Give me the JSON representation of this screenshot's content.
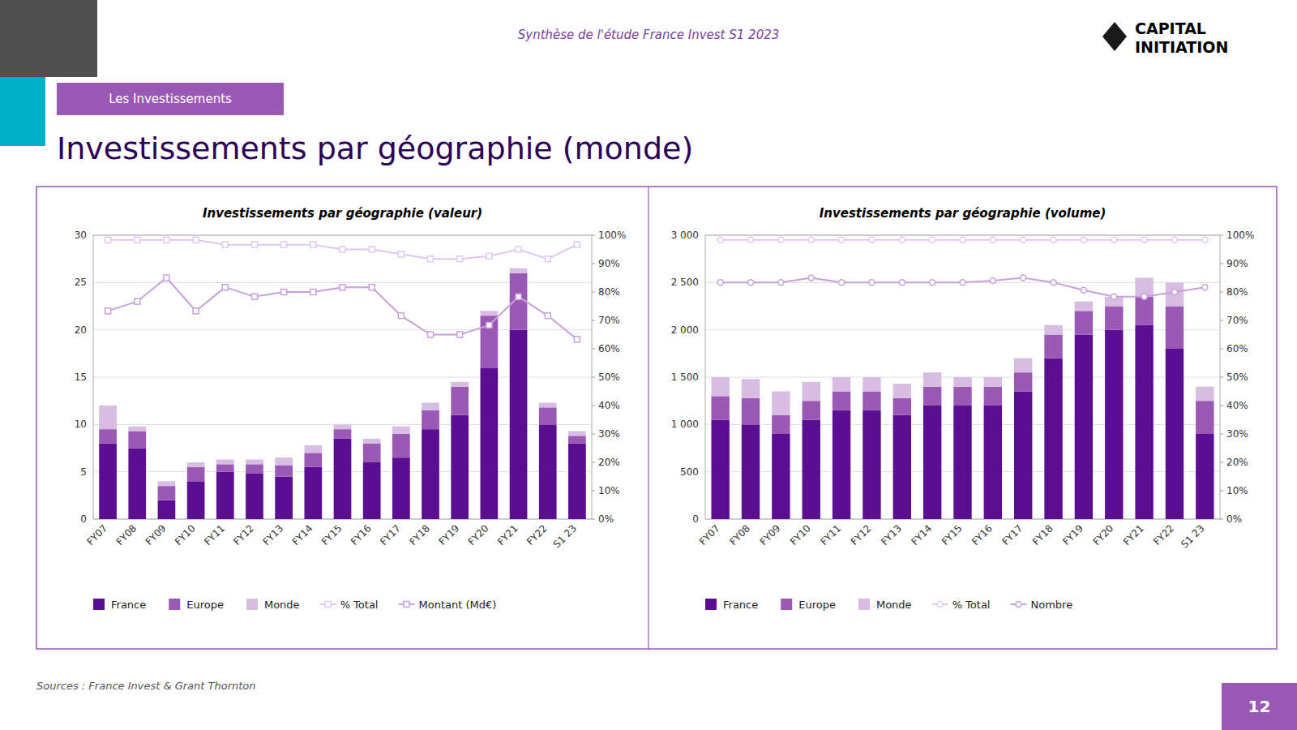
{
  "title": "Investissements par géographie (monde)",
  "subtitle": "Synthèse de l'étude France Invest S1 2023",
  "annotations": [
    "Les Investissements",
    "CAPITAL",
    "INITIATION",
    "Sources : France Invest & Grant Thornton",
    "12"
  ],
  "chart_data": [
    {
      "type": "bar",
      "title": "Investissements par géographie (valeur)",
      "stacked": true,
      "grid": true,
      "legend": "bottom",
      "categories": [
        "FY07",
        "FY08",
        "FY09",
        "FY10",
        "FY11",
        "FY12",
        "FY13",
        "FY14",
        "FY15",
        "FY16",
        "FY17",
        "FY18",
        "FY19",
        "FY20",
        "FY21",
        "FY22",
        "S1 23"
      ],
      "series": [
        {
          "name": "France",
          "type": "bar",
          "color": "#5B0E91",
          "values": [
            8.0,
            7.5,
            2.0,
            4.0,
            5.0,
            4.8,
            4.5,
            5.5,
            8.5,
            6.0,
            6.5,
            9.5,
            11.0,
            16.0,
            20.0,
            10.0,
            8.0
          ]
        },
        {
          "name": "Europe",
          "type": "bar",
          "color": "#9B59B6",
          "values": [
            1.5,
            1.8,
            1.5,
            1.5,
            0.8,
            1.0,
            1.2,
            1.5,
            1.0,
            2.0,
            2.5,
            2.0,
            3.0,
            5.5,
            6.0,
            1.8,
            0.8
          ]
        },
        {
          "name": "Monde",
          "type": "bar",
          "color": "#D7BDE2",
          "values": [
            2.5,
            0.5,
            0.5,
            0.5,
            0.5,
            0.5,
            0.8,
            0.8,
            0.5,
            0.5,
            0.8,
            0.8,
            0.5,
            0.5,
            0.5,
            0.5,
            0.5
          ]
        },
        {
          "name": "% Total",
          "type": "line",
          "color": "#E0C8F0",
          "marker": "square",
          "values": [
            29.5,
            29.5,
            29.5,
            29.5,
            29.0,
            29.0,
            29.0,
            29.0,
            28.5,
            28.5,
            28.0,
            27.5,
            27.5,
            27.8,
            28.5,
            27.5,
            29.0
          ]
        },
        {
          "name": "Montant (Md€)",
          "type": "line",
          "color": "#C8A0DC",
          "marker": "square",
          "values": [
            22.0,
            23.0,
            25.5,
            22.0,
            24.5,
            23.5,
            24.0,
            24.0,
            24.5,
            24.5,
            21.5,
            19.5,
            19.5,
            20.5,
            23.5,
            21.5,
            19.0
          ]
        }
      ],
      "ylim": [
        0,
        30
      ],
      "yticks": [
        0,
        5,
        10,
        15,
        20,
        25,
        30
      ],
      "y2lim": [
        0,
        100
      ],
      "y2ticks": [
        {
          "value": 0,
          "label": "0%"
        },
        {
          "value": 10,
          "label": "10%"
        },
        {
          "value": 20,
          "label": "20%"
        },
        {
          "value": 30,
          "label": "30%"
        },
        {
          "value": 40,
          "label": "40%"
        },
        {
          "value": 50,
          "label": "50%"
        },
        {
          "value": 60,
          "label": "60%"
        },
        {
          "value": 70,
          "label": "70%"
        },
        {
          "value": 80,
          "label": "80%"
        },
        {
          "value": 90,
          "label": "90%"
        },
        {
          "value": 100,
          "label": "100%"
        }
      ]
    },
    {
      "type": "bar",
      "title": "Investissements par géographie (volume)",
      "stacked": true,
      "grid": true,
      "legend": "bottom",
      "categories": [
        "FY07",
        "FY08",
        "FY09",
        "FY10",
        "FY11",
        "FY12",
        "FY13",
        "FY14",
        "FY15",
        "FY16",
        "FY17",
        "FY18",
        "FY19",
        "FY20",
        "FY21",
        "FY22",
        "S1 23"
      ],
      "series": [
        {
          "name": "France",
          "type": "bar",
          "color": "#5B0E91",
          "values": [
            1050,
            1000,
            900,
            1050,
            1150,
            1150,
            1100,
            1200,
            1200,
            1200,
            1350,
            1700,
            1950,
            2000,
            2050,
            1800,
            900
          ]
        },
        {
          "name": "Europe",
          "type": "bar",
          "color": "#9B59B6",
          "values": [
            250,
            280,
            200,
            200,
            200,
            200,
            180,
            200,
            200,
            200,
            200,
            250,
            250,
            250,
            300,
            450,
            350
          ]
        },
        {
          "name": "Monde",
          "type": "bar",
          "color": "#D7BDE2",
          "values": [
            200,
            200,
            250,
            200,
            150,
            150,
            150,
            150,
            100,
            100,
            150,
            100,
            100,
            100,
            200,
            250,
            150
          ]
        },
        {
          "name": "% Total",
          "type": "line",
          "color": "#E0C8F0",
          "marker": "circle",
          "values": [
            2950,
            2950,
            2950,
            2950,
            2950,
            2950,
            2950,
            2950,
            2950,
            2950,
            2950,
            2950,
            2950,
            2950,
            2950,
            2950,
            2950
          ]
        },
        {
          "name": "Nombre",
          "type": "line",
          "color": "#C8A0DC",
          "marker": "circle",
          "values": [
            2500,
            2500,
            2500,
            2550,
            2500,
            2500,
            2500,
            2500,
            2500,
            2520,
            2550,
            2500,
            2420,
            2350,
            2350,
            2400,
            2450
          ]
        }
      ],
      "ylim": [
        0,
        3000
      ],
      "yticks": [
        0,
        500,
        {
          "value": 1000,
          "label": "1 000"
        },
        {
          "value": 1500,
          "label": "1 500"
        },
        {
          "value": 2000,
          "label": "2 000"
        },
        {
          "value": 2500,
          "label": "2 500"
        },
        {
          "value": 3000,
          "label": "3 000"
        }
      ],
      "y2lim": [
        0,
        100
      ],
      "y2ticks": [
        {
          "value": 0,
          "label": "0%"
        },
        {
          "value": 10,
          "label": "10%"
        },
        {
          "value": 20,
          "label": "20%"
        },
        {
          "value": 30,
          "label": "30%"
        },
        {
          "value": 40,
          "label": "40%"
        },
        {
          "value": 50,
          "label": "50%"
        },
        {
          "value": 60,
          "label": "60%"
        },
        {
          "value": 70,
          "label": "70%"
        },
        {
          "value": 80,
          "label": "80%"
        },
        {
          "value": 90,
          "label": "90%"
        },
        {
          "value": 100,
          "label": "100%"
        }
      ]
    }
  ]
}
